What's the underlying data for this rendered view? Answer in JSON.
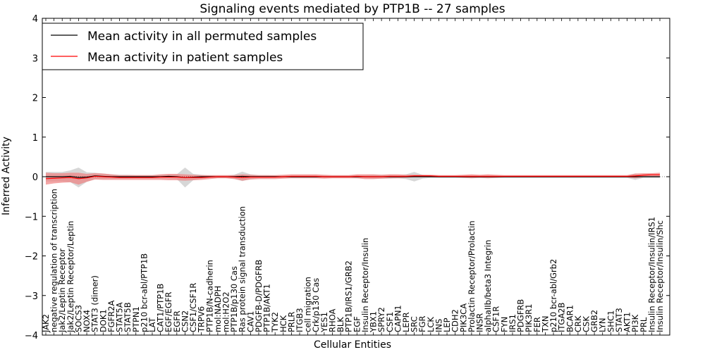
{
  "chart_data": {
    "type": "line",
    "title": "Signaling events mediated by PTP1B -- 27 samples",
    "xlabel": "Cellular Entities",
    "ylabel": "Inferred Activity",
    "ylim": [
      -4,
      4
    ],
    "yticks": [
      "4",
      "3",
      "2",
      "1",
      "0",
      "−1",
      "−2",
      "−3",
      "−4"
    ],
    "legend_position": "top-left",
    "colors": {
      "permuted": "#000000",
      "patient": "#ff0000",
      "patient_band": "#f08080",
      "permuted_band": "#b0b0b0"
    },
    "categories": [
      "JAK2",
      "negative regulation of transcription",
      "Jak2/Leptin Receptor",
      "Jak2/Leptin Receptor/Leptin",
      "SOCS3",
      "NOX4",
      "STAT3 (dimer)",
      "DOK1",
      "FGFR2A",
      "STAT5A",
      "STAT5B",
      "PTPN1",
      "p210 bcr-abl/PTP1B",
      "LAT",
      "CAT1/PTP1B",
      "EGF/EGFR",
      "EGFR",
      "CSN2",
      "CSF1/CSF1R",
      "TRPV6",
      "PTP1B/N-cadherin",
      "mol:NADPH",
      "mol:H2O2",
      "PTP1B/p130 Cas",
      "Ras protein signal transduction",
      "CAV1",
      "PDGFB-D/PDGFRB",
      "PTP1B/AKT1",
      "TYK2",
      "HCK",
      "PRLR",
      "ITGB3",
      "cell migration",
      "Crk/p130 Cas",
      "YES1",
      "RHOA",
      "BLK",
      "PTP1B/IRS1/GRB2",
      "EGF",
      "Insulin Receptor/Insulin",
      "YBX1",
      "SPRY2",
      "CSF1",
      "CAPN1",
      "LEPR",
      "SRC",
      "FGR",
      "LCK",
      "INS",
      "LEP",
      "CDH2",
      "PIK3CA",
      "Prolactin Receptor/Prolactin",
      "INSR",
      "alphaIIb/beta3 Integrin",
      "CSF1R",
      "FYN",
      "IRS1",
      "PDGFRB",
      "PIK3R1",
      "FER",
      "TXN",
      "p210 bcr-abl/Grb2",
      "ITGA2B",
      "BCAR1",
      "CRK",
      "CSK",
      "GRB2",
      "LYN",
      "SHC1",
      "STAT3",
      "AKT1",
      "PI3K",
      "PRL",
      "Insulin Receptor/Insulin/IRS1",
      "Insulin Receptor/Insulin/Shc"
    ],
    "series": [
      {
        "name": "Mean activity in all permuted samples",
        "values": [
          0.0,
          0.0,
          0.0,
          0.01,
          -0.02,
          -0.01,
          0.02,
          0.01,
          0.0,
          0.0,
          0.0,
          0.0,
          0.0,
          0.0,
          0.0,
          0.01,
          0.0,
          -0.02,
          -0.01,
          0.0,
          0.0,
          0.0,
          0.0,
          0.0,
          0.01,
          0.0,
          0.0,
          0.0,
          0.0,
          0.0,
          0.0,
          0.0,
          0.0,
          0.0,
          0.0,
          0.0,
          0.0,
          0.0,
          0.0,
          0.0,
          0.0,
          0.0,
          0.0,
          0.0,
          0.0,
          0.0,
          0.0,
          0.0,
          0.0,
          0.0,
          0.0,
          0.0,
          0.0,
          0.0,
          0.0,
          0.0,
          0.0,
          0.0,
          0.0,
          0.0,
          0.0,
          0.0,
          0.0,
          0.0,
          0.0,
          0.0,
          0.0,
          0.0,
          0.0,
          0.0,
          0.0,
          0.0,
          0.0,
          0.0,
          0.0,
          0.0
        ],
        "band": [
          0.12,
          0.12,
          0.12,
          0.15,
          0.25,
          0.12,
          0.08,
          0.07,
          0.06,
          0.05,
          0.05,
          0.04,
          0.04,
          0.04,
          0.05,
          0.05,
          0.06,
          0.25,
          0.08,
          0.05,
          0.03,
          0.03,
          0.03,
          0.05,
          0.12,
          0.06,
          0.04,
          0.04,
          0.03,
          0.03,
          0.03,
          0.03,
          0.03,
          0.03,
          0.03,
          0.03,
          0.03,
          0.03,
          0.04,
          0.04,
          0.05,
          0.05,
          0.05,
          0.04,
          0.06,
          0.12,
          0.05,
          0.03,
          0.03,
          0.03,
          0.03,
          0.03,
          0.03,
          0.03,
          0.03,
          0.03,
          0.03,
          0.03,
          0.03,
          0.03,
          0.03,
          0.03,
          0.03,
          0.03,
          0.03,
          0.03,
          0.03,
          0.03,
          0.03,
          0.03,
          0.03,
          0.03,
          0.08,
          0.03,
          0.03,
          0.03
        ]
      },
      {
        "name": "Mean activity in patient samples",
        "values": [
          -0.05,
          -0.04,
          -0.03,
          -0.02,
          -0.05,
          -0.03,
          0.01,
          0.0,
          -0.01,
          -0.02,
          -0.02,
          -0.02,
          -0.02,
          -0.02,
          -0.01,
          -0.01,
          -0.01,
          -0.02,
          -0.02,
          -0.02,
          -0.01,
          0.0,
          0.0,
          -0.01,
          -0.02,
          -0.01,
          -0.01,
          -0.01,
          -0.01,
          0.0,
          0.01,
          0.01,
          0.01,
          0.01,
          0.0,
          0.0,
          0.0,
          0.0,
          0.01,
          0.0,
          0.0,
          0.0,
          0.01,
          0.01,
          0.01,
          0.02,
          0.02,
          0.02,
          0.01,
          0.01,
          0.01,
          0.01,
          0.01,
          0.01,
          0.01,
          0.01,
          0.01,
          0.01,
          0.01,
          0.01,
          0.01,
          0.01,
          0.01,
          0.01,
          0.01,
          0.01,
          0.01,
          0.01,
          0.01,
          0.01,
          0.01,
          0.01,
          0.02,
          0.04,
          0.05,
          0.05
        ],
        "band": [
          0.15,
          0.13,
          0.12,
          0.12,
          0.15,
          0.1,
          0.08,
          0.08,
          0.07,
          0.06,
          0.06,
          0.06,
          0.06,
          0.06,
          0.07,
          0.08,
          0.08,
          0.08,
          0.07,
          0.06,
          0.05,
          0.04,
          0.04,
          0.05,
          0.08,
          0.06,
          0.05,
          0.05,
          0.05,
          0.05,
          0.05,
          0.05,
          0.05,
          0.05,
          0.05,
          0.04,
          0.04,
          0.04,
          0.05,
          0.06,
          0.06,
          0.05,
          0.05,
          0.05,
          0.04,
          0.03,
          0.03,
          0.03,
          0.03,
          0.03,
          0.03,
          0.04,
          0.05,
          0.04,
          0.05,
          0.04,
          0.03,
          0.03,
          0.03,
          0.03,
          0.03,
          0.03,
          0.03,
          0.03,
          0.03,
          0.03,
          0.03,
          0.03,
          0.03,
          0.03,
          0.03,
          0.03,
          0.06,
          0.05,
          0.04,
          0.05
        ]
      }
    ]
  }
}
